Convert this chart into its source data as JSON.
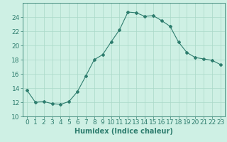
{
  "x": [
    0,
    1,
    2,
    3,
    4,
    5,
    6,
    7,
    8,
    9,
    10,
    11,
    12,
    13,
    14,
    15,
    16,
    17,
    18,
    19,
    20,
    21,
    22,
    23
  ],
  "y": [
    13.7,
    12.0,
    12.1,
    11.8,
    11.7,
    12.1,
    13.5,
    15.7,
    18.0,
    18.7,
    20.5,
    22.2,
    24.7,
    24.6,
    24.1,
    24.2,
    23.5,
    22.7,
    20.5,
    19.0,
    18.3,
    18.1,
    17.9,
    17.3
  ],
  "line_color": "#2e7d6e",
  "marker": "D",
  "marker_size": 2.0,
  "bg_color": "#cef0e4",
  "grid_color": "#aad8c8",
  "tick_color": "#2e7d6e",
  "xlabel": "Humidex (Indice chaleur)",
  "ylim": [
    10,
    26
  ],
  "xlim": [
    -0.5,
    23.5
  ],
  "yticks": [
    10,
    12,
    14,
    16,
    18,
    20,
    22,
    24
  ],
  "xticks": [
    0,
    1,
    2,
    3,
    4,
    5,
    6,
    7,
    8,
    9,
    10,
    11,
    12,
    13,
    14,
    15,
    16,
    17,
    18,
    19,
    20,
    21,
    22,
    23
  ],
  "xlabel_fontsize": 7,
  "tick_fontsize": 6.5
}
